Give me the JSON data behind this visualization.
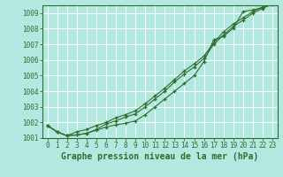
{
  "title": "Graphe pression niveau de la mer (hPa)",
  "bg_color": "#b3e8e0",
  "grid_color": "#c8e8e0",
  "line_color": "#2d6e2d",
  "x_values": [
    0,
    1,
    2,
    3,
    4,
    5,
    6,
    7,
    8,
    9,
    10,
    11,
    12,
    13,
    14,
    15,
    16,
    17,
    18,
    19,
    20,
    21,
    22,
    23
  ],
  "series": [
    [
      1001.8,
      1001.4,
      1001.15,
      1001.2,
      1001.3,
      1001.5,
      1001.7,
      1001.85,
      1001.95,
      1002.1,
      1002.5,
      1003.0,
      1003.5,
      1004.0,
      1004.5,
      1005.0,
      1005.9,
      1007.3,
      1007.5,
      1008.05,
      1009.1,
      1009.2,
      1009.35,
      1009.55
    ],
    [
      1001.8,
      1001.4,
      1001.15,
      1001.2,
      1001.3,
      1001.55,
      1001.9,
      1002.1,
      1002.35,
      1002.55,
      1003.0,
      1003.5,
      1004.0,
      1004.6,
      1005.1,
      1005.55,
      1006.1,
      1007.0,
      1007.6,
      1008.15,
      1008.55,
      1009.0,
      1009.3,
      1009.6
    ],
    [
      1001.8,
      1001.4,
      1001.15,
      1001.4,
      1001.55,
      1001.8,
      1002.0,
      1002.3,
      1002.5,
      1002.75,
      1003.2,
      1003.7,
      1004.2,
      1004.75,
      1005.3,
      1005.75,
      1006.25,
      1007.1,
      1007.8,
      1008.3,
      1008.7,
      1009.1,
      1009.4,
      1009.7
    ]
  ],
  "ylim": [
    1001.0,
    1009.5
  ],
  "yticks": [
    1001,
    1002,
    1003,
    1004,
    1005,
    1006,
    1007,
    1008,
    1009
  ],
  "xlim": [
    -0.5,
    23.5
  ],
  "xticks": [
    0,
    1,
    2,
    3,
    4,
    5,
    6,
    7,
    8,
    9,
    10,
    11,
    12,
    13,
    14,
    15,
    16,
    17,
    18,
    19,
    20,
    21,
    22,
    23
  ],
  "title_fontsize": 7.0,
  "tick_fontsize": 5.5,
  "figwidth": 3.2,
  "figheight": 2.0,
  "dpi": 100
}
